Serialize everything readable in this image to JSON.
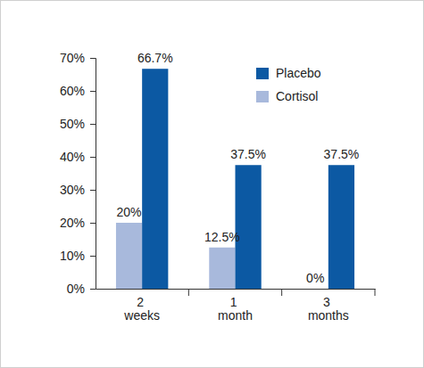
{
  "chart_data": {
    "type": "bar",
    "categories": [
      "2 weeks",
      "1 month",
      "3 months"
    ],
    "series": [
      {
        "name": "Cortisol",
        "color": "#a8b9dc",
        "values": [
          20,
          12.5,
          0
        ],
        "value_labels": [
          "20%",
          "12.5%",
          "0%"
        ]
      },
      {
        "name": "Placebo",
        "color": "#0c59a3",
        "values": [
          66.7,
          37.5,
          37.5
        ],
        "value_labels": [
          "66.7%",
          "37.5%",
          "37.5%"
        ]
      }
    ],
    "ylim": [
      0,
      70
    ],
    "yticks": [
      {
        "value": 0,
        "label": "0%"
      },
      {
        "value": 10,
        "label": "10%"
      },
      {
        "value": 20,
        "label": "20%"
      },
      {
        "value": 30,
        "label": "30%"
      },
      {
        "value": 40,
        "label": "40%"
      },
      {
        "value": 50,
        "label": "50%"
      },
      {
        "value": 60,
        "label": "60%"
      },
      {
        "value": 70,
        "label": "70%"
      }
    ],
    "grid": false,
    "legend": "upper right",
    "data_labels": true
  }
}
